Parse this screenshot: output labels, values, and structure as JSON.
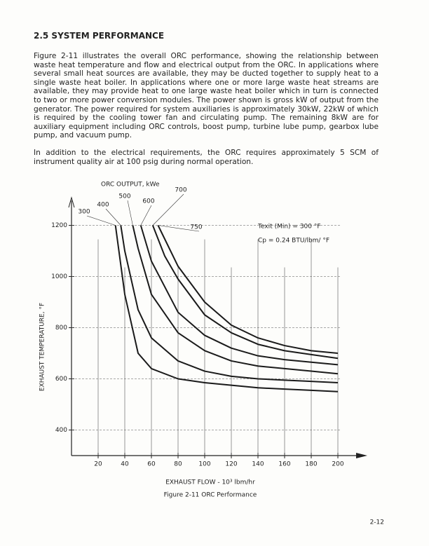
{
  "heading": "2.5 SYSTEM PERFORMANCE",
  "paragraphs": [
    "Figure 2-11 illustrates the overall ORC performance, showing the relationship between waste heat temperature and flow and electrical output from the ORC. In applications where several small heat sources are available, they may be ducted together to supply heat to a single waste heat boiler. In applications where one or more large waste heat streams are available, they may provide heat to one large waste heat boiler which in turn is connected to two or more power conversion modules. The power shown is gross kW of output from the generator. The power required for system auxiliaries is approximately 30kW, 22kW of which is required by the cooling tower fan and circulating pump. The remaining 8kW are for auxiliary equipment including ORC controls, boost pump, turbine lube pump, gearbox lube pump, and vacuum pump.",
    "In addition to the electrical requirements, the ORC requires approximately 5 SCM of instrument quality air at 100 psig during normal operation."
  ],
  "chart_data": {
    "type": "line",
    "annotations": [
      "ORC OUTPUT, kWe",
      "Texit (Min) = 300 °F",
      "Cp = 0.24 BTU/lbm/ °F"
    ],
    "x_label": "EXHAUST FLOW - 10³ lbm/hr",
    "y_label": "EXHAUST TEMPERATURE, °F",
    "caption": "Figure 2-11  ORC Performance",
    "xlim": [
      0,
      220
    ],
    "ylim": [
      300,
      1300
    ],
    "xticks": [
      20,
      40,
      60,
      80,
      100,
      120,
      140,
      160,
      180,
      200
    ],
    "yticks": [
      400,
      600,
      800,
      1000,
      1200
    ],
    "grid": true,
    "color": "#1a1a1a",
    "series": [
      {
        "name": "300",
        "x": [
          33,
          40,
          50,
          60,
          80,
          100,
          120,
          140,
          160,
          180,
          200
        ],
        "values": [
          1200,
          930,
          700,
          640,
          600,
          585,
          575,
          565,
          560,
          555,
          550
        ]
      },
      {
        "name": "400",
        "x": [
          37,
          40,
          50,
          60,
          80,
          100,
          120,
          140,
          160,
          180,
          200
        ],
        "values": [
          1200,
          1100,
          870,
          760,
          670,
          630,
          610,
          600,
          595,
          590,
          585
        ]
      },
      {
        "name": "500",
        "x": [
          46,
          50,
          60,
          80,
          100,
          120,
          140,
          160,
          180,
          200
        ],
        "values": [
          1200,
          1110,
          930,
          780,
          710,
          670,
          650,
          640,
          630,
          620
        ]
      },
      {
        "name": "600",
        "x": [
          52,
          60,
          80,
          100,
          120,
          140,
          160,
          180,
          200
        ],
        "values": [
          1200,
          1060,
          860,
          770,
          720,
          690,
          675,
          665,
          655
        ]
      },
      {
        "name": "700",
        "x": [
          61,
          70,
          80,
          100,
          120,
          140,
          160,
          180,
          200
        ],
        "values": [
          1200,
          1080,
          990,
          850,
          780,
          735,
          710,
          695,
          680
        ]
      },
      {
        "name": "750",
        "x": [
          65,
          80,
          100,
          120,
          140,
          160,
          180,
          200
        ],
        "values": [
          1200,
          1040,
          900,
          810,
          760,
          730,
          710,
          700
        ]
      }
    ]
  },
  "page_number": "2-12"
}
